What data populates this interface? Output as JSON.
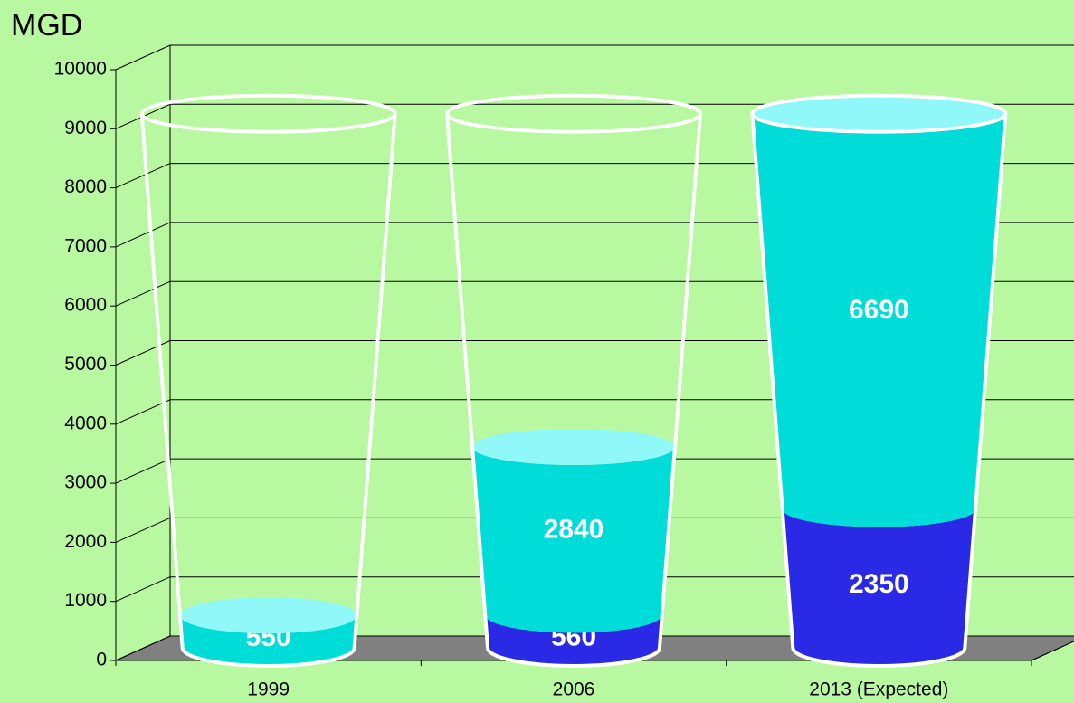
{
  "chart_data": {
    "type": "cup-stack",
    "y_label": "MGD",
    "categories": [
      "1999",
      "2006",
      "2013 (Expected)"
    ],
    "series": [
      {
        "color": "#2a2ae6",
        "values": [
          null,
          560,
          2350
        ]
      },
      {
        "color": "#00dcd8",
        "values": [
          550,
          2840,
          6690
        ]
      }
    ],
    "ylim": [
      0,
      10000
    ],
    "yticks": [
      0,
      1000,
      2000,
      3000,
      4000,
      5000,
      6000,
      7000,
      8000,
      9000,
      10000
    ],
    "grid": true
  }
}
